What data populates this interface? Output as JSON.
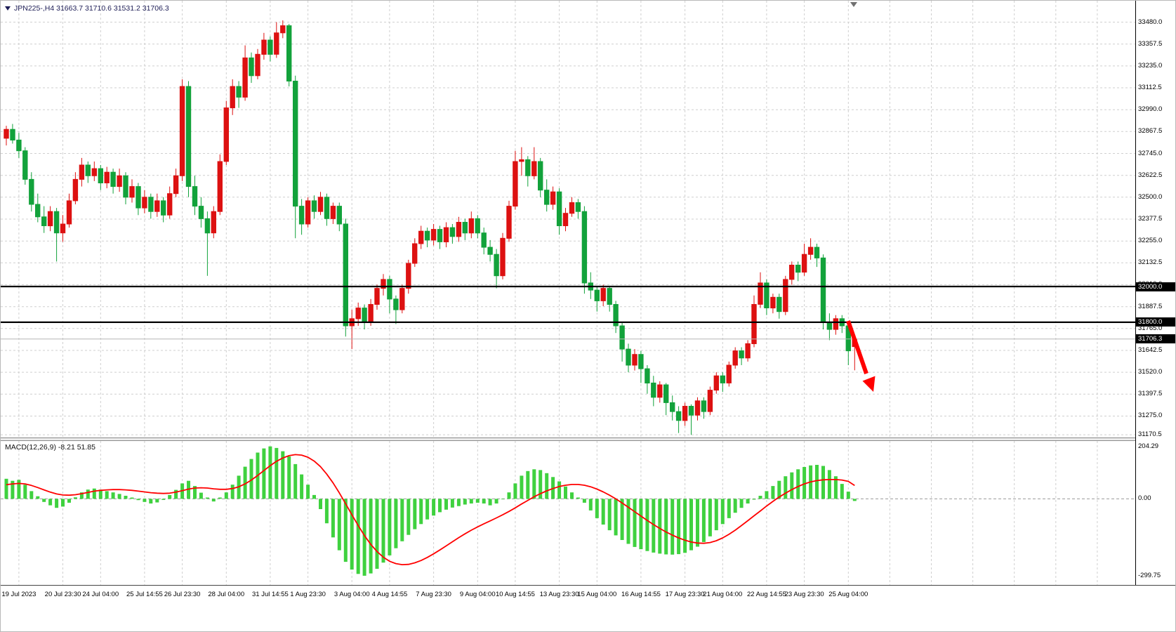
{
  "info_bar": {
    "symbol": "JPN225-",
    "timeframe": "H4",
    "open": "31663.7",
    "high": "31710.6",
    "low": "31531.2",
    "close": "31706.3",
    "text": "JPN225-,H4 31663.7 31710.6 31531.2 31706.3"
  },
  "macd": {
    "name": "MACD(12,26,9)",
    "value": "-8.21",
    "signal_value": "51.85",
    "label_full": "MACD(12,26,9) -8.21 51.85",
    "axis_labels": [
      {
        "label": "204.29",
        "value": 204.29
      },
      {
        "label": "0.00",
        "value": 0
      },
      {
        "label": "-299.75",
        "value": -299.75
      }
    ]
  },
  "price_axis": {
    "tick_labels": [
      "33480.0",
      "33357.5",
      "33235.0",
      "33112.5",
      "32990.0",
      "32867.5",
      "32745.0",
      "32622.5",
      "32500.0",
      "32377.5",
      "32255.0",
      "32132.5",
      "32010.0",
      "31887.5",
      "31765.0",
      "31642.5",
      "31520.0",
      "31397.5",
      "31275.0",
      "31170.5"
    ],
    "tags": [
      {
        "label": "32000.0",
        "value": 32000.0,
        "kind": "horizontal-level"
      },
      {
        "label": "31800.0",
        "value": 31800.0,
        "kind": "horizontal-level"
      },
      {
        "label": "31706.3",
        "value": 31706.3,
        "kind": "current-price"
      }
    ]
  },
  "colors": {
    "background": "#ffffff",
    "grid": "#cfcfcf",
    "bull": "#dd1111",
    "bear": "#12a23b",
    "macd_bar": "#3fd13f",
    "signal": "#ff0000",
    "level_line": "#000000",
    "tag_bg": "#000000",
    "tag_text": "#ffffff",
    "arrow": "#ff0000",
    "bid_line": "#b5b5b5"
  },
  "annotations": {
    "trend_arrow": {
      "type": "arrow",
      "direction": "down-right",
      "color": "#ff0000"
    }
  },
  "chart_data": {
    "type": "candlestick",
    "symbol": "JPN225-",
    "timeframe": "H4",
    "indicator": "MACD(12,26,9)",
    "price_range_visible": [
      31170.5,
      33480.0
    ],
    "macd_range_visible": [
      -299.75,
      204.29
    ],
    "levels": [
      32000.0,
      31800.0
    ],
    "current_price": 31706.3,
    "x_tick_labels": [
      "19 Jul 2023",
      "20 Jul 23:30",
      "24 Jul 04:00",
      "25 Jul 14:55",
      "26 Jul 23:30",
      "28 Jul 04:00",
      "31 Jul 14:55",
      "1 Aug 23:30",
      "3 Aug 04:00",
      "4 Aug 14:55",
      "7 Aug 23:30",
      "9 Aug 04:00",
      "10 Aug 14:55",
      "13 Aug 23:30",
      "15 Aug 04:00",
      "16 Aug 14:55",
      "17 Aug 23:30",
      "21 Aug 04:00",
      "22 Aug 14:55",
      "23 Aug 23:30",
      "25 Aug 04:00"
    ],
    "x_tick_indices": [
      2,
      9,
      15,
      22,
      28,
      35,
      42,
      48,
      55,
      61,
      68,
      75,
      81,
      88,
      94,
      101,
      108,
      114,
      121,
      127,
      134
    ],
    "candles": [
      [
        32830,
        32900,
        32790,
        32880
      ],
      [
        32880,
        32910,
        32800,
        32820
      ],
      [
        32820,
        32860,
        32720,
        32760
      ],
      [
        32760,
        32780,
        32570,
        32600
      ],
      [
        32600,
        32640,
        32420,
        32460
      ],
      [
        32460,
        32520,
        32360,
        32390
      ],
      [
        32390,
        32450,
        32300,
        32340
      ],
      [
        32340,
        32450,
        32310,
        32420
      ],
      [
        32420,
        32440,
        32140,
        32300
      ],
      [
        32300,
        32400,
        32250,
        32350
      ],
      [
        32350,
        32520,
        32330,
        32480
      ],
      [
        32480,
        32640,
        32460,
        32600
      ],
      [
        32600,
        32720,
        32560,
        32680
      ],
      [
        32680,
        32700,
        32580,
        32620
      ],
      [
        32620,
        32700,
        32590,
        32660
      ],
      [
        32660,
        32680,
        32540,
        32580
      ],
      [
        32580,
        32670,
        32550,
        32640
      ],
      [
        32640,
        32660,
        32520,
        32560
      ],
      [
        32560,
        32660,
        32530,
        32620
      ],
      [
        32620,
        32640,
        32460,
        32500
      ],
      [
        32500,
        32600,
        32470,
        32560
      ],
      [
        32560,
        32580,
        32400,
        32440
      ],
      [
        32440,
        32540,
        32410,
        32500
      ],
      [
        32500,
        32520,
        32380,
        32420
      ],
      [
        32420,
        32520,
        32390,
        32480
      ],
      [
        32480,
        32500,
        32360,
        32400
      ],
      [
        32400,
        32560,
        32380,
        32520
      ],
      [
        32520,
        32660,
        32500,
        32620
      ],
      [
        32620,
        33160,
        32590,
        33120
      ],
      [
        33120,
        33150,
        32500,
        32560
      ],
      [
        32560,
        32620,
        32400,
        32450
      ],
      [
        32450,
        32500,
        32330,
        32380
      ],
      [
        32380,
        32420,
        32060,
        32300
      ],
      [
        32300,
        32450,
        32270,
        32420
      ],
      [
        32420,
        32740,
        32400,
        32700
      ],
      [
        32700,
        33040,
        32680,
        33000
      ],
      [
        33000,
        33160,
        32960,
        33120
      ],
      [
        33120,
        33150,
        33000,
        33060
      ],
      [
        33060,
        33350,
        33040,
        33280
      ],
      [
        33280,
        33310,
        33140,
        33180
      ],
      [
        33180,
        33330,
        33160,
        33300
      ],
      [
        33300,
        33420,
        33270,
        33380
      ],
      [
        33380,
        33400,
        33260,
        33300
      ],
      [
        33300,
        33480,
        33280,
        33420
      ],
      [
        33420,
        33490,
        33390,
        33460
      ],
      [
        33460,
        33470,
        33120,
        33150
      ],
      [
        33150,
        33180,
        32270,
        32450
      ],
      [
        32450,
        32490,
        32290,
        32350
      ],
      [
        32350,
        32500,
        32330,
        32480
      ],
      [
        32480,
        32510,
        32380,
        32420
      ],
      [
        32420,
        32530,
        32400,
        32500
      ],
      [
        32500,
        32520,
        32340,
        32380
      ],
      [
        32380,
        32470,
        32350,
        32450
      ],
      [
        32450,
        32470,
        32310,
        32350
      ],
      [
        32350,
        32380,
        31720,
        31780
      ],
      [
        31780,
        31870,
        31650,
        31820
      ],
      [
        31820,
        31910,
        31780,
        31880
      ],
      [
        31880,
        31900,
        31760,
        31800
      ],
      [
        31800,
        31930,
        31780,
        31900
      ],
      [
        31900,
        32010,
        31870,
        31990
      ],
      [
        31990,
        32070,
        31950,
        32040
      ],
      [
        32040,
        32060,
        31850,
        31930
      ],
      [
        31930,
        31950,
        31790,
        31870
      ],
      [
        31870,
        32010,
        31850,
        31990
      ],
      [
        31990,
        32150,
        31960,
        32130
      ],
      [
        32130,
        32270,
        32110,
        32240
      ],
      [
        32240,
        32340,
        32210,
        32310
      ],
      [
        32310,
        32330,
        32220,
        32260
      ],
      [
        32260,
        32350,
        32230,
        32320
      ],
      [
        32320,
        32340,
        32210,
        32250
      ],
      [
        32250,
        32360,
        32220,
        32330
      ],
      [
        32330,
        32350,
        32240,
        32280
      ],
      [
        32280,
        32390,
        32250,
        32360
      ],
      [
        32360,
        32380,
        32260,
        32300
      ],
      [
        32300,
        32420,
        32270,
        32380
      ],
      [
        32380,
        32400,
        32270,
        32300
      ],
      [
        32300,
        32330,
        32180,
        32220
      ],
      [
        32220,
        32260,
        32140,
        32180
      ],
      [
        32180,
        32210,
        31990,
        32060
      ],
      [
        32060,
        32300,
        32040,
        32270
      ],
      [
        32270,
        32480,
        32250,
        32450
      ],
      [
        32450,
        32760,
        32430,
        32700
      ],
      [
        32700,
        32780,
        32620,
        32710
      ],
      [
        32710,
        32730,
        32560,
        32620
      ],
      [
        32620,
        32780,
        32600,
        32700
      ],
      [
        32700,
        32720,
        32500,
        32540
      ],
      [
        32540,
        32600,
        32420,
        32460
      ],
      [
        32460,
        32560,
        32430,
        32530
      ],
      [
        32530,
        32550,
        32290,
        32340
      ],
      [
        32340,
        32440,
        32310,
        32410
      ],
      [
        32410,
        32500,
        32390,
        32470
      ],
      [
        32470,
        32490,
        32380,
        32420
      ],
      [
        32420,
        32450,
        31960,
        32020
      ],
      [
        32020,
        32080,
        31930,
        31980
      ],
      [
        31980,
        32000,
        31860,
        31920
      ],
      [
        31920,
        32010,
        31890,
        31990
      ],
      [
        31990,
        32000,
        31860,
        31900
      ],
      [
        31900,
        31920,
        31740,
        31780
      ],
      [
        31780,
        31800,
        31580,
        31650
      ],
      [
        31650,
        31680,
        31520,
        31560
      ],
      [
        31560,
        31650,
        31530,
        31620
      ],
      [
        31620,
        31640,
        31460,
        31540
      ],
      [
        31540,
        31560,
        31400,
        31460
      ],
      [
        31460,
        31500,
        31330,
        31380
      ],
      [
        31380,
        31470,
        31350,
        31450
      ],
      [
        31450,
        31460,
        31280,
        31350
      ],
      [
        31350,
        31390,
        31250,
        31300
      ],
      [
        31300,
        31330,
        31180,
        31250
      ],
      [
        31250,
        31350,
        31220,
        31330
      ],
      [
        31330,
        31340,
        31170,
        31280
      ],
      [
        31280,
        31380,
        31250,
        31360
      ],
      [
        31360,
        31380,
        31260,
        31300
      ],
      [
        31300,
        31440,
        31280,
        31420
      ],
      [
        31420,
        31520,
        31400,
        31500
      ],
      [
        31500,
        31520,
        31410,
        31460
      ],
      [
        31460,
        31580,
        31440,
        31560
      ],
      [
        31560,
        31660,
        31540,
        31640
      ],
      [
        31640,
        31660,
        31560,
        31600
      ],
      [
        31600,
        31700,
        31580,
        31680
      ],
      [
        31680,
        31950,
        31660,
        31900
      ],
      [
        31900,
        32080,
        31880,
        32020
      ],
      [
        32020,
        32040,
        31840,
        31880
      ],
      [
        31880,
        31960,
        31850,
        31940
      ],
      [
        31940,
        31960,
        31820,
        31860
      ],
      [
        31860,
        32060,
        31840,
        32040
      ],
      [
        32040,
        32140,
        32010,
        32120
      ],
      [
        32120,
        32140,
        32030,
        32080
      ],
      [
        32080,
        32240,
        32060,
        32180
      ],
      [
        32180,
        32270,
        32150,
        32220
      ],
      [
        32220,
        32240,
        32110,
        32160
      ],
      [
        32160,
        32180,
        31760,
        31800
      ],
      [
        31800,
        31850,
        31700,
        31760
      ],
      [
        31760,
        31840,
        31730,
        31820
      ],
      [
        31820,
        31840,
        31740,
        31780
      ],
      [
        31780,
        31800,
        31560,
        31640
      ],
      [
        31663.7,
        31710.6,
        31531.2,
        31706.3
      ]
    ],
    "macd_histogram": [
      78,
      70,
      74,
      55,
      30,
      10,
      -12,
      -25,
      -35,
      -30,
      -15,
      6,
      25,
      36,
      40,
      36,
      30,
      25,
      19,
      12,
      5,
      -5,
      -12,
      -18,
      -14,
      -4,
      15,
      35,
      60,
      70,
      50,
      24,
      5,
      -10,
      5,
      25,
      55,
      90,
      125,
      155,
      180,
      196,
      204,
      198,
      185,
      165,
      135,
      95,
      55,
      15,
      -40,
      -95,
      -150,
      -200,
      -245,
      -275,
      -292,
      -299,
      -290,
      -272,
      -248,
      -220,
      -192,
      -165,
      -140,
      -118,
      -98,
      -80,
      -65,
      -52,
      -42,
      -34,
      -28,
      -22,
      -18,
      -15,
      -18,
      -25,
      -18,
      -2,
      25,
      60,
      90,
      108,
      115,
      112,
      100,
      85,
      68,
      48,
      25,
      5,
      -15,
      -45,
      -75,
      -100,
      -122,
      -142,
      -160,
      -175,
      -187,
      -196,
      -203,
      -209,
      -213,
      -216,
      -217,
      -215,
      -210,
      -200,
      -186,
      -168,
      -146,
      -122,
      -98,
      -75,
      -54,
      -35,
      -18,
      -3,
      12,
      30,
      50,
      70,
      88,
      103,
      115,
      124,
      130,
      132,
      128,
      112,
      88,
      58,
      28,
      -8.21
    ],
    "macd_signal": [
      55,
      58,
      60,
      58,
      52,
      44,
      35,
      26,
      19,
      15,
      14,
      16,
      20,
      25,
      30,
      33,
      35,
      36,
      36,
      35,
      33,
      30,
      27,
      24,
      22,
      21,
      22,
      26,
      32,
      38,
      42,
      43,
      42,
      39,
      37,
      37,
      40,
      47,
      58,
      73,
      91,
      110,
      129,
      146,
      159,
      168,
      172,
      170,
      162,
      147,
      125,
      96,
      62,
      23,
      -19,
      -62,
      -104,
      -143,
      -177,
      -205,
      -227,
      -243,
      -252,
      -256,
      -255,
      -249,
      -240,
      -228,
      -214,
      -199,
      -183,
      -167,
      -151,
      -136,
      -122,
      -109,
      -97,
      -86,
      -74,
      -62,
      -49,
      -35,
      -20,
      -6,
      8,
      20,
      31,
      40,
      48,
      53,
      56,
      56,
      53,
      47,
      38,
      27,
      14,
      0,
      -16,
      -33,
      -50,
      -67,
      -84,
      -100,
      -115,
      -129,
      -141,
      -152,
      -161,
      -168,
      -172,
      -173,
      -170,
      -163,
      -152,
      -138,
      -122,
      -104,
      -85,
      -66,
      -47,
      -28,
      -10,
      7,
      22,
      36,
      48,
      58,
      66,
      71,
      74,
      75,
      75,
      73,
      68,
      51.85
    ]
  }
}
